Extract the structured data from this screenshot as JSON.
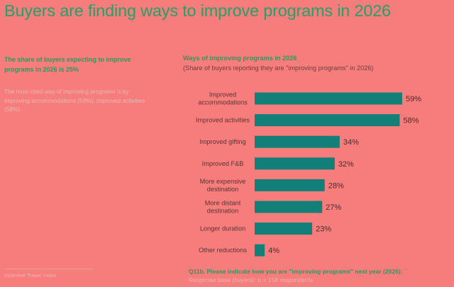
{
  "page": {
    "title": "Buyers are finding ways to improve programs in 2026",
    "left_heading": "The share of buyers expecting to improve programs in 2026 is 25%",
    "left_body": "The most cited way of improving programs is by improving accommodations (59%), improved activities (58%)",
    "source": "Incentive Travel Index",
    "footnote_question": "Q11b. Please indicate how you are \"improving programs\" next year (2026):",
    "footnote_base": "Response base (buyers): n = 158 respondents"
  },
  "chart_data": {
    "type": "bar",
    "orientation": "horizontal",
    "title": "Ways of improving programs in 2026",
    "subtitle": "(Share of buyers reporting they are \"improving programs\" in 2026)",
    "categories": [
      [
        "Improved",
        "accommodations"
      ],
      [
        "Improved activities"
      ],
      [
        "Improved gifting"
      ],
      [
        "Improved F&B"
      ],
      [
        "More expensive",
        "destination"
      ],
      [
        "More distant",
        "destination"
      ],
      [
        "Longer duration"
      ],
      [
        "Other reductions"
      ]
    ],
    "values": [
      59,
      58,
      34,
      32,
      28,
      27,
      23,
      4
    ],
    "value_labels": [
      "59%",
      "58%",
      "34%",
      "32%",
      "28%",
      "27%",
      "23%",
      "4%"
    ],
    "xlim": [
      0,
      100
    ],
    "colors": {
      "bar": "#137F79"
    }
  }
}
